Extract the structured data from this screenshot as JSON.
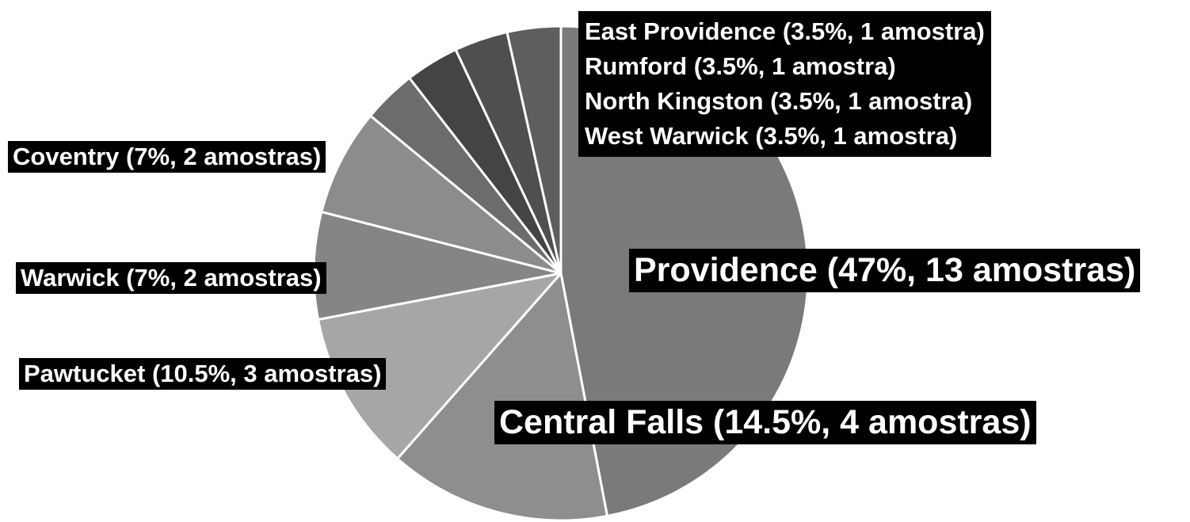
{
  "chart_data": {
    "type": "pie",
    "title": "",
    "legend": "none",
    "slices": [
      {
        "label": "Providence (47%, 13 amostras)",
        "percent": 47,
        "samples": 13,
        "color": "#7a7a7a"
      },
      {
        "label": "Central Falls (14.5%, 4 amostras)",
        "percent": 14.5,
        "samples": 4,
        "color": "#8e8e8e"
      },
      {
        "label": "Pawtucket (10.5%, 3 amostras)",
        "percent": 10.5,
        "samples": 3,
        "color": "#a6a6a6"
      },
      {
        "label": "Warwick (7%, 2 amostras)",
        "percent": 7,
        "samples": 2,
        "color": "#858585"
      },
      {
        "label": "Coventry (7%, 2 amostras)",
        "percent": 7,
        "samples": 2,
        "color": "#8c8c8c"
      },
      {
        "label": "West Warwick (3.5%, 1 amostra)",
        "percent": 3.5,
        "samples": 1,
        "color": "#6c6c6c"
      },
      {
        "label": "North Kingston (3.5%, 1 amostra)",
        "percent": 3.5,
        "samples": 1,
        "color": "#444444"
      },
      {
        "label": "Rumford (3.5%, 1 amostra)",
        "percent": 3.5,
        "samples": 1,
        "color": "#4f4f4f"
      },
      {
        "label": "East Providence (3.5%, 1 amostra)",
        "percent": 3.5,
        "samples": 1,
        "color": "#5e5e5e"
      }
    ]
  }
}
